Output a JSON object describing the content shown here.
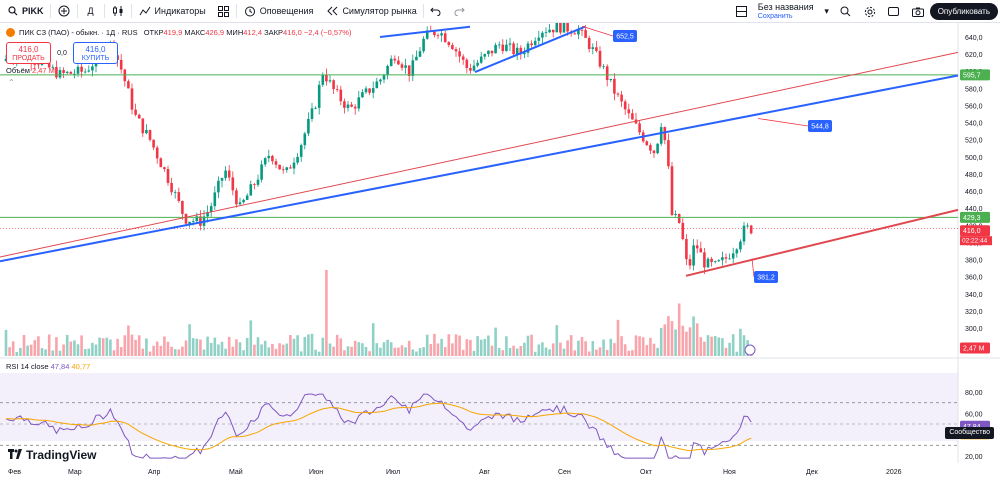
{
  "toolbar": {
    "symbol": "PIKK",
    "interval": "Д",
    "indicators_label": "Индикаторы",
    "alerts_label": "Оповещения",
    "replay_label": "Симулятор рынка",
    "layout_title": "Без названия",
    "layout_status": "Сохранить",
    "publish_label": "Опубликовать"
  },
  "legend": {
    "symbol_title": "ПИК СЗ (ПАО) - обыкн. · 1Д · RUS",
    "open_label": "ОТКР",
    "open": "419,9",
    "high_label": "МАКС",
    "high": "426,9",
    "low_label": "МИН",
    "low": "412,4",
    "close_label": "ЗАКР",
    "close": "416,0",
    "change": "−2,4 (−0,57%)"
  },
  "trade": {
    "sell_price": "416,0",
    "sell_label": "ПРОДАТЬ",
    "spread": "0,0",
    "buy_price": "416,0",
    "buy_label": "КУПИТЬ"
  },
  "volume": {
    "label": "Объём",
    "value": "2,47 M"
  },
  "rsi": {
    "label": "RSI 14 close",
    "value": "47,84",
    "ma": "40,77"
  },
  "price_axis": [
    "640,0",
    "620,0",
    "600,0",
    "580,0",
    "560,0",
    "540,0",
    "520,0",
    "500,0",
    "480,0",
    "460,0",
    "440,0",
    "420,0",
    "400,0",
    "380,0",
    "360,0",
    "340,0",
    "320,0",
    "300,0"
  ],
  "rsi_axis": [
    "80,00",
    "60,00",
    "40,00",
    "20,00"
  ],
  "price_tags": {
    "resistance": "595,7",
    "support": "429,3",
    "last": "416,0",
    "countdown": "02:22:44",
    "volume": "2,47 M",
    "rsi": "47,84",
    "rsi_ma": "40,77"
  },
  "callouts": [
    "652,5",
    "544,8",
    "381,2"
  ],
  "messages_label": "Сообщество",
  "brand": "TradingView",
  "time_axis": [
    "Фев",
    "Мар",
    "Апр",
    "Май",
    "Июн",
    "Июл",
    "Авг",
    "Сен",
    "Окт",
    "Ноя",
    "Дек",
    "2026"
  ],
  "colors": {
    "up": "#089981",
    "down": "#f23645",
    "blue_line": "#2962ff",
    "red_line": "#e0484f",
    "green_level": "#4caf50",
    "rsi": "#7e57c2",
    "rsi_ma": "#f7a600"
  }
}
